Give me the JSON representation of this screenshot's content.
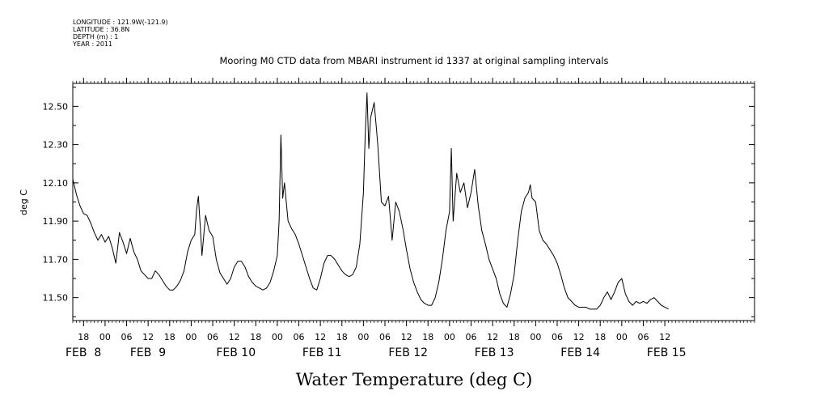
{
  "header": {
    "meta_lines": [
      "LONGITUDE : 121.9W(-121.9)",
      "LATITUDE : 36.8N",
      "DEPTH (m) : 1",
      "YEAR : 2011"
    ],
    "title": "Mooring M0 CTD data from MBARI instrument id 1337 at original sampling intervals"
  },
  "chart_data": {
    "type": "line",
    "title": "Mooring M0 CTD data from MBARI instrument id 1337 at original sampling intervals",
    "xlabel": "Water Temperature (deg C)",
    "ylabel": "deg C",
    "xlim": [
      "2011-02-07T15:00",
      "2011-02-15T13:00"
    ],
    "ylim": [
      11.38,
      12.62
    ],
    "y_ticks": [
      "11.50",
      "11.70",
      "11.90",
      "12.10",
      "12.30",
      "12.50"
    ],
    "x_hour_labels": [
      {
        "t": "2011-02-07T18:00",
        "label": "18"
      },
      {
        "t": "2011-02-08T00:00",
        "label": "00"
      },
      {
        "t": "2011-02-08T06:00",
        "label": "06"
      },
      {
        "t": "2011-02-08T12:00",
        "label": "12"
      },
      {
        "t": "2011-02-08T18:00",
        "label": "18"
      },
      {
        "t": "2011-02-09T00:00",
        "label": "00"
      },
      {
        "t": "2011-02-09T06:00",
        "label": "06"
      },
      {
        "t": "2011-02-09T12:00",
        "label": "12"
      },
      {
        "t": "2011-02-09T18:00",
        "label": "18"
      },
      {
        "t": "2011-02-10T00:00",
        "label": "00"
      },
      {
        "t": "2011-02-10T06:00",
        "label": "06"
      },
      {
        "t": "2011-02-10T12:00",
        "label": "12"
      },
      {
        "t": "2011-02-10T18:00",
        "label": "18"
      },
      {
        "t": "2011-02-11T00:00",
        "label": "00"
      },
      {
        "t": "2011-02-11T06:00",
        "label": "06"
      },
      {
        "t": "2011-02-11T12:00",
        "label": "12"
      },
      {
        "t": "2011-02-11T18:00",
        "label": "18"
      },
      {
        "t": "2011-02-12T00:00",
        "label": "00"
      },
      {
        "t": "2011-02-12T06:00",
        "label": "06"
      },
      {
        "t": "2011-02-12T12:00",
        "label": "12"
      },
      {
        "t": "2011-02-12T18:00",
        "label": "18"
      },
      {
        "t": "2011-02-13T00:00",
        "label": "00"
      },
      {
        "t": "2011-02-13T06:00",
        "label": "06"
      },
      {
        "t": "2011-02-13T12:00",
        "label": "12"
      },
      {
        "t": "2011-02-13T18:00",
        "label": "18"
      },
      {
        "t": "2011-02-14T00:00",
        "label": "00"
      },
      {
        "t": "2011-02-14T06:00",
        "label": "06"
      },
      {
        "t": "2011-02-14T12:00",
        "label": "12"
      }
    ],
    "x_date_labels": [
      {
        "t": "2011-02-07T15:00",
        "label": "FEB  8"
      },
      {
        "t": "2011-02-08T09:00",
        "label": "FEB  9"
      },
      {
        "t": "2011-02-09T09:00",
        "label": "FEB 10"
      },
      {
        "t": "2011-02-10T09:00",
        "label": "FEB 11"
      },
      {
        "t": "2011-02-11T09:00",
        "label": "FEB 12"
      },
      {
        "t": "2011-02-12T09:00",
        "label": "FEB 13"
      },
      {
        "t": "2011-02-13T09:00",
        "label": "FEB 14"
      },
      {
        "t": "2011-02-14T09:00",
        "label": "FEB 15"
      }
    ],
    "grid": false,
    "series": [
      {
        "color": "#000000",
        "points": [
          [
            "2011-02-07T15:00",
            12.12
          ],
          [
            "2011-02-07T16:00",
            12.04
          ],
          [
            "2011-02-07T17:00",
            11.98
          ],
          [
            "2011-02-07T18:00",
            11.94
          ],
          [
            "2011-02-07T19:00",
            11.93
          ],
          [
            "2011-02-07T20:00",
            11.89
          ],
          [
            "2011-02-07T21:00",
            11.84
          ],
          [
            "2011-02-07T22:00",
            11.8
          ],
          [
            "2011-02-07T23:00",
            11.83
          ],
          [
            "2011-02-08T00:00",
            11.79
          ],
          [
            "2011-02-08T01:00",
            11.82
          ],
          [
            "2011-02-08T02:00",
            11.76
          ],
          [
            "2011-02-08T03:00",
            11.68
          ],
          [
            "2011-02-08T04:00",
            11.84
          ],
          [
            "2011-02-08T05:00",
            11.79
          ],
          [
            "2011-02-08T06:00",
            11.73
          ],
          [
            "2011-02-08T07:00",
            11.81
          ],
          [
            "2011-02-08T08:00",
            11.74
          ],
          [
            "2011-02-08T09:00",
            11.7
          ],
          [
            "2011-02-08T10:00",
            11.64
          ],
          [
            "2011-02-08T11:00",
            11.62
          ],
          [
            "2011-02-08T12:00",
            11.6
          ],
          [
            "2011-02-08T13:00",
            11.6
          ],
          [
            "2011-02-08T14:00",
            11.64
          ],
          [
            "2011-02-08T15:00",
            11.62
          ],
          [
            "2011-02-08T16:00",
            11.59
          ],
          [
            "2011-02-08T17:00",
            11.56
          ],
          [
            "2011-02-08T18:00",
            11.54
          ],
          [
            "2011-02-08T19:00",
            11.54
          ],
          [
            "2011-02-08T20:00",
            11.56
          ],
          [
            "2011-02-08T21:00",
            11.59
          ],
          [
            "2011-02-08T22:00",
            11.64
          ],
          [
            "2011-02-08T23:00",
            11.74
          ],
          [
            "2011-02-09T00:00",
            11.8
          ],
          [
            "2011-02-09T01:00",
            11.83
          ],
          [
            "2011-02-09T01:30",
            11.96
          ],
          [
            "2011-02-09T02:00",
            12.03
          ],
          [
            "2011-02-09T02:30",
            11.88
          ],
          [
            "2011-02-09T03:00",
            11.72
          ],
          [
            "2011-02-09T04:00",
            11.93
          ],
          [
            "2011-02-09T05:00",
            11.85
          ],
          [
            "2011-02-09T06:00",
            11.82
          ],
          [
            "2011-02-09T07:00",
            11.7
          ],
          [
            "2011-02-09T08:00",
            11.63
          ],
          [
            "2011-02-09T09:00",
            11.6
          ],
          [
            "2011-02-09T10:00",
            11.57
          ],
          [
            "2011-02-09T11:00",
            11.6
          ],
          [
            "2011-02-09T12:00",
            11.66
          ],
          [
            "2011-02-09T13:00",
            11.69
          ],
          [
            "2011-02-09T14:00",
            11.69
          ],
          [
            "2011-02-09T15:00",
            11.66
          ],
          [
            "2011-02-09T16:00",
            11.61
          ],
          [
            "2011-02-09T17:00",
            11.58
          ],
          [
            "2011-02-09T18:00",
            11.56
          ],
          [
            "2011-02-09T19:00",
            11.55
          ],
          [
            "2011-02-09T20:00",
            11.54
          ],
          [
            "2011-02-09T21:00",
            11.55
          ],
          [
            "2011-02-09T22:00",
            11.58
          ],
          [
            "2011-02-09T23:00",
            11.64
          ],
          [
            "2011-02-10T00:00",
            11.72
          ],
          [
            "2011-02-10T00:30",
            11.9
          ],
          [
            "2011-02-10T01:00",
            12.35
          ],
          [
            "2011-02-10T01:30",
            12.02
          ],
          [
            "2011-02-10T02:00",
            12.1
          ],
          [
            "2011-02-10T03:00",
            11.9
          ],
          [
            "2011-02-10T04:00",
            11.86
          ],
          [
            "2011-02-10T05:00",
            11.83
          ],
          [
            "2011-02-10T06:00",
            11.78
          ],
          [
            "2011-02-10T07:00",
            11.72
          ],
          [
            "2011-02-10T08:00",
            11.66
          ],
          [
            "2011-02-10T09:00",
            11.6
          ],
          [
            "2011-02-10T10:00",
            11.55
          ],
          [
            "2011-02-10T11:00",
            11.54
          ],
          [
            "2011-02-10T12:00",
            11.6
          ],
          [
            "2011-02-10T13:00",
            11.68
          ],
          [
            "2011-02-10T14:00",
            11.72
          ],
          [
            "2011-02-10T15:00",
            11.72
          ],
          [
            "2011-02-10T16:00",
            11.7
          ],
          [
            "2011-02-10T17:00",
            11.67
          ],
          [
            "2011-02-10T18:00",
            11.64
          ],
          [
            "2011-02-10T19:00",
            11.62
          ],
          [
            "2011-02-10T20:00",
            11.61
          ],
          [
            "2011-02-10T21:00",
            11.62
          ],
          [
            "2011-02-10T22:00",
            11.66
          ],
          [
            "2011-02-10T23:00",
            11.78
          ],
          [
            "2011-02-11T00:00",
            12.05
          ],
          [
            "2011-02-11T00:30",
            12.35
          ],
          [
            "2011-02-11T01:00",
            12.57
          ],
          [
            "2011-02-11T01:30",
            12.28
          ],
          [
            "2011-02-11T02:00",
            12.44
          ],
          [
            "2011-02-11T03:00",
            12.52
          ],
          [
            "2011-02-11T04:00",
            12.3
          ],
          [
            "2011-02-11T05:00",
            12.0
          ],
          [
            "2011-02-11T06:00",
            11.98
          ],
          [
            "2011-02-11T07:00",
            12.03
          ],
          [
            "2011-02-11T08:00",
            11.8
          ],
          [
            "2011-02-11T09:00",
            12.0
          ],
          [
            "2011-02-11T10:00",
            11.95
          ],
          [
            "2011-02-11T11:00",
            11.86
          ],
          [
            "2011-02-11T12:00",
            11.75
          ],
          [
            "2011-02-11T13:00",
            11.65
          ],
          [
            "2011-02-11T14:00",
            11.58
          ],
          [
            "2011-02-11T15:00",
            11.53
          ],
          [
            "2011-02-11T16:00",
            11.49
          ],
          [
            "2011-02-11T17:00",
            11.47
          ],
          [
            "2011-02-11T18:00",
            11.46
          ],
          [
            "2011-02-11T19:00",
            11.46
          ],
          [
            "2011-02-11T20:00",
            11.5
          ],
          [
            "2011-02-11T21:00",
            11.58
          ],
          [
            "2011-02-11T22:00",
            11.7
          ],
          [
            "2011-02-11T23:00",
            11.85
          ],
          [
            "2011-02-12T00:00",
            11.95
          ],
          [
            "2011-02-12T00:30",
            12.28
          ],
          [
            "2011-02-12T01:00",
            11.9
          ],
          [
            "2011-02-12T02:00",
            12.15
          ],
          [
            "2011-02-12T03:00",
            12.05
          ],
          [
            "2011-02-12T04:00",
            12.1
          ],
          [
            "2011-02-12T05:00",
            11.97
          ],
          [
            "2011-02-12T06:00",
            12.05
          ],
          [
            "2011-02-12T07:00",
            12.17
          ],
          [
            "2011-02-12T08:00",
            11.98
          ],
          [
            "2011-02-12T09:00",
            11.85
          ],
          [
            "2011-02-12T10:00",
            11.78
          ],
          [
            "2011-02-12T11:00",
            11.7
          ],
          [
            "2011-02-12T12:00",
            11.65
          ],
          [
            "2011-02-12T13:00",
            11.6
          ],
          [
            "2011-02-12T14:00",
            11.52
          ],
          [
            "2011-02-12T15:00",
            11.47
          ],
          [
            "2011-02-12T16:00",
            11.45
          ],
          [
            "2011-02-12T17:00",
            11.52
          ],
          [
            "2011-02-12T18:00",
            11.62
          ],
          [
            "2011-02-12T19:00",
            11.8
          ],
          [
            "2011-02-12T20:00",
            11.95
          ],
          [
            "2011-02-12T21:00",
            12.02
          ],
          [
            "2011-02-12T22:00",
            12.05
          ],
          [
            "2011-02-12T22:30",
            12.09
          ],
          [
            "2011-02-12T23:00",
            12.02
          ],
          [
            "2011-02-13T00:00",
            12.0
          ],
          [
            "2011-02-13T01:00",
            11.85
          ],
          [
            "2011-02-13T02:00",
            11.8
          ],
          [
            "2011-02-13T03:00",
            11.78
          ],
          [
            "2011-02-13T04:00",
            11.75
          ],
          [
            "2011-02-13T05:00",
            11.72
          ],
          [
            "2011-02-13T06:00",
            11.68
          ],
          [
            "2011-02-13T07:00",
            11.62
          ],
          [
            "2011-02-13T08:00",
            11.55
          ],
          [
            "2011-02-13T09:00",
            11.5
          ],
          [
            "2011-02-13T10:00",
            11.48
          ],
          [
            "2011-02-13T11:00",
            11.46
          ],
          [
            "2011-02-13T12:00",
            11.45
          ],
          [
            "2011-02-13T13:00",
            11.45
          ],
          [
            "2011-02-13T14:00",
            11.45
          ],
          [
            "2011-02-13T15:00",
            11.44
          ],
          [
            "2011-02-13T16:00",
            11.44
          ],
          [
            "2011-02-13T17:00",
            11.44
          ],
          [
            "2011-02-13T18:00",
            11.46
          ],
          [
            "2011-02-13T19:00",
            11.5
          ],
          [
            "2011-02-13T20:00",
            11.53
          ],
          [
            "2011-02-13T21:00",
            11.49
          ],
          [
            "2011-02-13T22:00",
            11.53
          ],
          [
            "2011-02-13T23:00",
            11.58
          ],
          [
            "2011-02-14T00:00",
            11.6
          ],
          [
            "2011-02-14T01:00",
            11.52
          ],
          [
            "2011-02-14T02:00",
            11.48
          ],
          [
            "2011-02-14T03:00",
            11.46
          ],
          [
            "2011-02-14T04:00",
            11.48
          ],
          [
            "2011-02-14T05:00",
            11.47
          ],
          [
            "2011-02-14T06:00",
            11.48
          ],
          [
            "2011-02-14T07:00",
            11.47
          ],
          [
            "2011-02-14T08:00",
            11.49
          ],
          [
            "2011-02-14T09:00",
            11.5
          ],
          [
            "2011-02-14T10:00",
            11.48
          ],
          [
            "2011-02-14T11:00",
            11.46
          ],
          [
            "2011-02-14T12:00",
            11.45
          ],
          [
            "2011-02-14T13:00",
            11.44
          ]
        ]
      }
    ]
  }
}
